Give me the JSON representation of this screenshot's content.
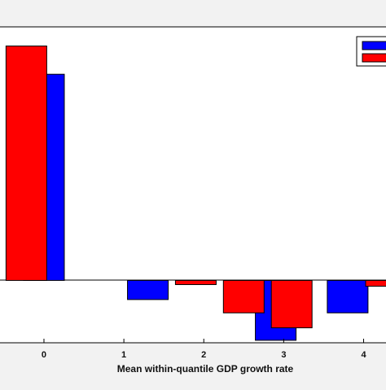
{
  "chart_data": {
    "type": "bar",
    "title": "",
    "xlabel": "Mean within-quantile GDP growth rate",
    "ylabel": "",
    "x_ticks": [
      "0",
      "1",
      "2",
      "3",
      "4"
    ],
    "xlim": [
      -0.55,
      4.28
    ],
    "ylim": [
      -0.75,
      3.05
    ],
    "grid": false,
    "legend": {
      "placement": "top-right",
      "entries": [
        "",
        ""
      ]
    },
    "series": [
      {
        "color": "#0000ff",
        "points": [
          {
            "x": 0.0,
            "y": 2.48
          },
          {
            "x": 1.3,
            "y": -0.23
          },
          {
            "x": 2.6,
            "y": -0.03
          },
          {
            "x": 2.9,
            "y": -0.72
          },
          {
            "x": 3.8,
            "y": -0.39
          }
        ]
      },
      {
        "color": "#ff0000",
        "points": [
          {
            "x": -0.22,
            "y": 2.82
          },
          {
            "x": 1.9,
            "y": -0.05
          },
          {
            "x": 2.5,
            "y": -0.39
          },
          {
            "x": 3.1,
            "y": -0.57
          },
          {
            "x": 4.28,
            "y": -0.07
          }
        ]
      }
    ]
  }
}
